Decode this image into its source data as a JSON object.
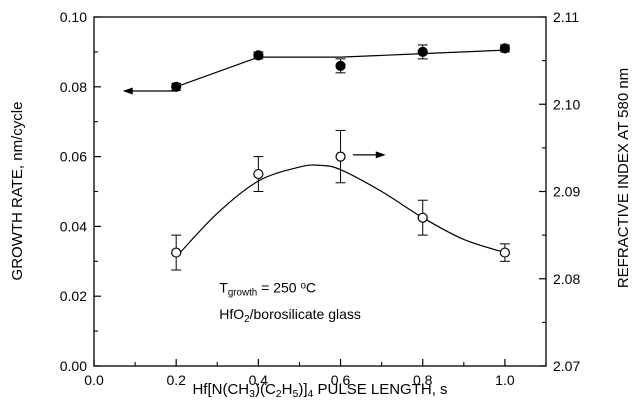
{
  "chart_data": {
    "type": "scatter",
    "xlabel": {
      "parts": [
        {
          "t": "Hf[N(CH"
        },
        {
          "t": "3",
          "sub": true
        },
        {
          "t": ")(C"
        },
        {
          "t": "2",
          "sub": true
        },
        {
          "t": "H"
        },
        {
          "t": "5",
          "sub": true
        },
        {
          "t": ")]"
        },
        {
          "t": "4",
          "sub": true
        },
        {
          "t": " PULSE LENGTH, s"
        }
      ]
    },
    "ylabel_left": "GROWTH RATE, nm/cycle",
    "ylabel_right": "REFRACTIVE INDEX AT 580 nm",
    "xlim": [
      0.0,
      1.1
    ],
    "ylim_left": [
      0.0,
      0.1
    ],
    "ylim_right": [
      2.07,
      2.11
    ],
    "x_ticks": [
      0.0,
      0.2,
      0.4,
      0.6,
      0.8,
      1.0
    ],
    "x_tick_labels": [
      "0.0",
      "0.2",
      "0.4",
      "0.6",
      "0.8",
      "1.0"
    ],
    "y_left_ticks": [
      0.0,
      0.02,
      0.04,
      0.06,
      0.08,
      0.1
    ],
    "y_left_tick_labels": [
      "0.00",
      "0.02",
      "0.04",
      "0.06",
      "0.08",
      "0.10"
    ],
    "y_right_ticks": [
      2.07,
      2.08,
      2.09,
      2.1,
      2.11
    ],
    "y_right_tick_labels": [
      "2.07",
      "2.08",
      "2.09",
      "2.10",
      "2.11"
    ],
    "grid": false,
    "series": [
      {
        "axis": "left",
        "marker": "filled-circle",
        "x": [
          0.2,
          0.4,
          0.6,
          0.8,
          1.0
        ],
        "y": [
          0.08,
          0.089,
          0.086,
          0.09,
          0.091
        ],
        "err": [
          0.001,
          0.001,
          0.002,
          0.002,
          0.001
        ],
        "fit_line": "segments",
        "fit_points": [
          [
            0.2,
            0.08
          ],
          [
            0.4,
            0.0885
          ],
          [
            0.6,
            0.0885
          ],
          [
            0.8,
            0.0895
          ],
          [
            1.0,
            0.0905
          ]
        ]
      },
      {
        "axis": "right",
        "marker": "open-circle",
        "x": [
          0.2,
          0.4,
          0.6,
          0.8,
          1.0
        ],
        "y": [
          2.083,
          2.092,
          2.094,
          2.087,
          2.083
        ],
        "err": [
          0.002,
          0.002,
          0.003,
          0.002,
          0.001
        ],
        "fit_line": "smooth",
        "fit_points": [
          [
            0.2,
            2.0825
          ],
          [
            0.3,
            2.0875
          ],
          [
            0.4,
            2.0912
          ],
          [
            0.5,
            2.0928
          ],
          [
            0.55,
            2.093
          ],
          [
            0.6,
            2.0925
          ],
          [
            0.7,
            2.09
          ],
          [
            0.8,
            2.087
          ],
          [
            0.9,
            2.0845
          ],
          [
            1.0,
            2.083
          ]
        ]
      }
    ],
    "arrows": [
      {
        "series": 0,
        "direction": "left",
        "from": [
          0.2,
          0.0788
        ],
        "to": [
          0.07,
          0.0788
        ]
      },
      {
        "series": 1,
        "direction": "right",
        "from": [
          0.63,
          2.0942
        ],
        "to": [
          0.71,
          2.0942
        ]
      }
    ],
    "annotations": [
      {
        "parts": [
          {
            "t": "T"
          },
          {
            "t": "growth",
            "sub": true
          },
          {
            "t": " = 250 "
          },
          {
            "t": "o",
            "sup": true
          },
          {
            "t": "C"
          }
        ],
        "anchor": [
          0.3,
          0.021
        ]
      },
      {
        "parts": [
          {
            "t": "HfO"
          },
          {
            "t": "2",
            "sub": true
          },
          {
            "t": "/borosilicate glass"
          }
        ],
        "anchor": [
          0.3,
          0.0135
        ]
      }
    ]
  }
}
